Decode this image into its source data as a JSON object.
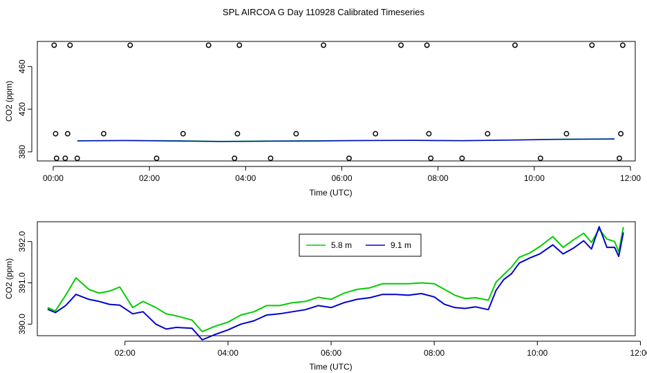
{
  "title": "SPL AIRCOA G  Day 110928  Calibrated Timeseries",
  "colors": {
    "green": "#00cc00",
    "blue": "#0000cc",
    "black": "#000000"
  },
  "chart_data": [
    {
      "type": "scatter",
      "xlabel": "Time (UTC)",
      "ylabel": "CO2 (ppm)",
      "xlim": [
        -0.33,
        12.1
      ],
      "ylim": [
        371.5,
        483.5
      ],
      "x_ticks": [
        0,
        2,
        4,
        6,
        8,
        10,
        12
      ],
      "x_tick_labels": [
        "00:00",
        "02:00",
        "04:00",
        "06:00",
        "08:00",
        "10:00",
        "12:00"
      ],
      "y_ticks": [
        380,
        420,
        460
      ],
      "y_tick_labels": [
        "380",
        "420",
        "460"
      ],
      "scatter_points": [
        {
          "x": 0.02,
          "y": 480
        },
        {
          "x": 0.35,
          "y": 480
        },
        {
          "x": 1.6,
          "y": 480
        },
        {
          "x": 3.23,
          "y": 480
        },
        {
          "x": 3.87,
          "y": 480
        },
        {
          "x": 5.62,
          "y": 480
        },
        {
          "x": 7.23,
          "y": 480
        },
        {
          "x": 7.77,
          "y": 480
        },
        {
          "x": 9.6,
          "y": 480
        },
        {
          "x": 11.2,
          "y": 480
        },
        {
          "x": 11.84,
          "y": 480
        },
        {
          "x": 0.05,
          "y": 397
        },
        {
          "x": 0.3,
          "y": 397
        },
        {
          "x": 1.05,
          "y": 397
        },
        {
          "x": 2.7,
          "y": 397
        },
        {
          "x": 3.83,
          "y": 397
        },
        {
          "x": 5.05,
          "y": 397
        },
        {
          "x": 6.7,
          "y": 397
        },
        {
          "x": 7.81,
          "y": 397
        },
        {
          "x": 9.03,
          "y": 397
        },
        {
          "x": 10.67,
          "y": 397
        },
        {
          "x": 11.8,
          "y": 397
        },
        {
          "x": 0.07,
          "y": 374
        },
        {
          "x": 0.25,
          "y": 374
        },
        {
          "x": 0.5,
          "y": 374
        },
        {
          "x": 2.15,
          "y": 374
        },
        {
          "x": 3.77,
          "y": 374
        },
        {
          "x": 4.52,
          "y": 374
        },
        {
          "x": 6.15,
          "y": 374
        },
        {
          "x": 7.85,
          "y": 374
        },
        {
          "x": 8.5,
          "y": 374
        },
        {
          "x": 10.13,
          "y": 374
        },
        {
          "x": 11.77,
          "y": 374
        }
      ],
      "line_series": [
        {
          "name": "5.8 m",
          "color": "green",
          "x": [
            0.5,
            1.5,
            2.5,
            3.5,
            4.5,
            5.5,
            6.5,
            7.5,
            8.5,
            9.5,
            10.5,
            11.67
          ],
          "values": [
            390.4,
            390.8,
            390.5,
            389.9,
            390.2,
            390.4,
            390.8,
            390.9,
            390.6,
            391.2,
            391.9,
            392.2
          ]
        },
        {
          "name": "9.1 m",
          "color": "blue",
          "x": [
            0.5,
            1.5,
            2.5,
            3.5,
            4.5,
            5.5,
            6.5,
            7.5,
            8.5,
            9.5,
            10.5,
            11.67
          ],
          "values": [
            390.3,
            390.6,
            390.2,
            389.7,
            390.0,
            390.2,
            390.6,
            390.7,
            390.4,
            391.0,
            391.7,
            392.0
          ]
        }
      ]
    },
    {
      "type": "line",
      "xlabel": "Time (UTC)",
      "ylabel": "CO2 (ppm)",
      "xlim": [
        0.3,
        11.9
      ],
      "ylim": [
        389.72,
        392.48
      ],
      "x_ticks": [
        2,
        4,
        6,
        8,
        10,
        12
      ],
      "x_tick_labels": [
        "02:00",
        "04:00",
        "06:00",
        "08:00",
        "10:00",
        "12:00"
      ],
      "y_ticks": [
        390.0,
        391.0,
        392.0
      ],
      "y_tick_labels": [
        "390.0",
        "391.0",
        "392.0"
      ],
      "legend_position": "top-center",
      "x_knots": [
        0.5,
        0.65,
        0.85,
        1.05,
        1.3,
        1.5,
        1.7,
        1.9,
        2.15,
        2.35,
        2.6,
        2.8,
        3.0,
        3.3,
        3.5,
        3.75,
        4.0,
        4.25,
        4.5,
        4.75,
        5.0,
        5.25,
        5.5,
        5.75,
        6.0,
        6.25,
        6.5,
        6.75,
        7.0,
        7.25,
        7.5,
        7.75,
        8.0,
        8.2,
        8.4,
        8.6,
        8.8,
        9.05,
        9.2,
        9.35,
        9.5,
        9.65,
        9.85,
        10.05,
        10.3,
        10.5,
        10.7,
        10.9,
        11.05,
        11.2,
        11.35,
        11.5,
        11.58,
        11.67
      ],
      "series": [
        {
          "name": "5.8 m",
          "color": "green",
          "values": [
            390.4,
            390.32,
            390.7,
            391.12,
            390.84,
            390.75,
            390.8,
            390.9,
            390.4,
            390.55,
            390.4,
            390.25,
            390.2,
            390.1,
            389.82,
            389.95,
            390.05,
            390.22,
            390.3,
            390.45,
            390.45,
            390.52,
            390.55,
            390.65,
            390.6,
            390.75,
            390.84,
            390.88,
            390.98,
            390.98,
            390.98,
            391.0,
            390.98,
            390.84,
            390.7,
            390.62,
            390.64,
            390.58,
            391.02,
            391.2,
            391.38,
            391.62,
            391.72,
            391.88,
            392.12,
            391.86,
            392.04,
            392.2,
            391.98,
            392.3,
            392.06,
            392.0,
            391.75,
            392.35
          ]
        },
        {
          "name": "9.1 m",
          "color": "blue",
          "values": [
            390.36,
            390.28,
            390.45,
            390.72,
            390.6,
            390.55,
            390.48,
            390.46,
            390.25,
            390.3,
            390.0,
            389.88,
            389.92,
            389.9,
            389.62,
            389.75,
            389.86,
            390.0,
            390.08,
            390.22,
            390.25,
            390.3,
            390.35,
            390.45,
            390.4,
            390.52,
            390.6,
            390.64,
            390.72,
            390.72,
            390.7,
            390.74,
            390.66,
            390.48,
            390.4,
            390.38,
            390.42,
            390.35,
            390.82,
            391.08,
            391.22,
            391.48,
            391.6,
            391.7,
            391.92,
            391.7,
            391.84,
            392.02,
            391.82,
            392.36,
            391.86,
            391.86,
            391.64,
            392.22
          ]
        }
      ]
    }
  ]
}
